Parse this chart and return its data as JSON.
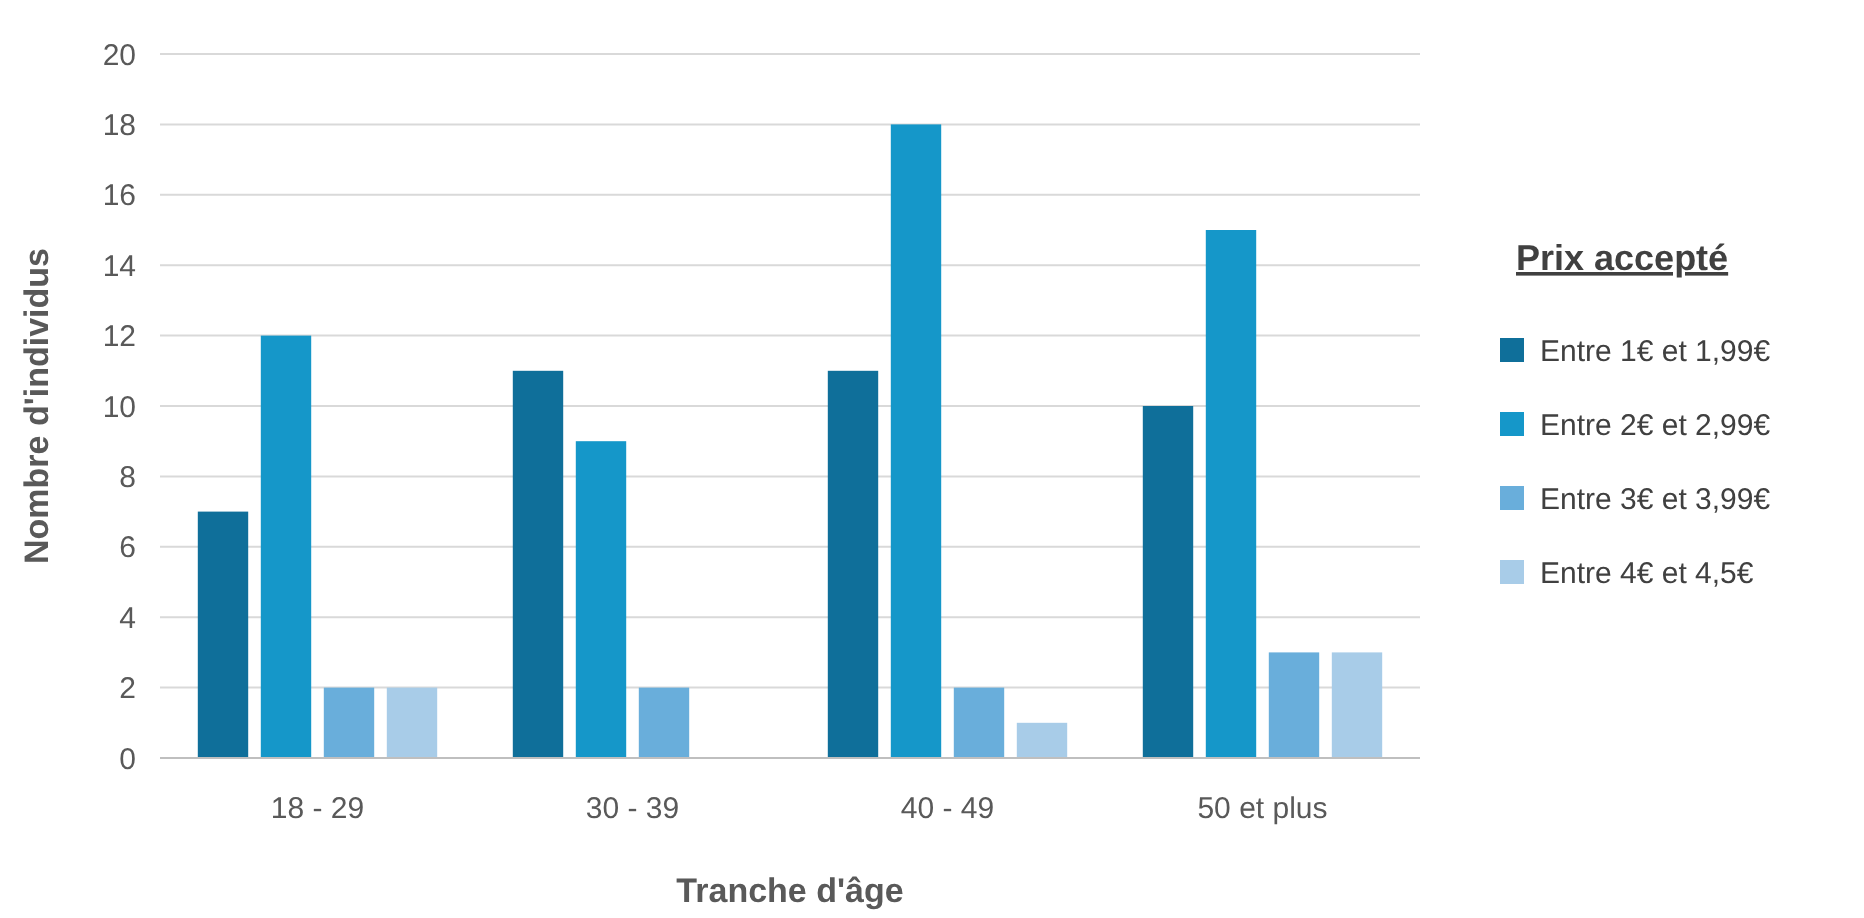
{
  "chart_data": {
    "type": "bar",
    "xlabel": "Tranche d'âge",
    "ylabel": "Nombre d'individus",
    "legend_title": "Prix accepté",
    "categories": [
      "18 - 29",
      "30 - 39",
      "40 - 49",
      "50 et plus"
    ],
    "series": [
      {
        "name": "Entre 1€ et 1,99€",
        "color": "#0f6f9a",
        "values": [
          7,
          11,
          11,
          10
        ]
      },
      {
        "name": "Entre 2€ et 2,99€",
        "color": "#1597c9",
        "values": [
          12,
          9,
          18,
          15
        ]
      },
      {
        "name": "Entre 3€ et 3,99€",
        "color": "#69aedb",
        "values": [
          2,
          2,
          2,
          3
        ]
      },
      {
        "name": "Entre 4€ et 4,5€",
        "color": "#a8cce8",
        "values": [
          2,
          0,
          1,
          3
        ]
      }
    ],
    "ylim": [
      0,
      20
    ],
    "yticks": [
      0,
      2,
      4,
      6,
      8,
      10,
      12,
      14,
      16,
      18,
      20
    ],
    "grid": "y",
    "legend": "right"
  }
}
